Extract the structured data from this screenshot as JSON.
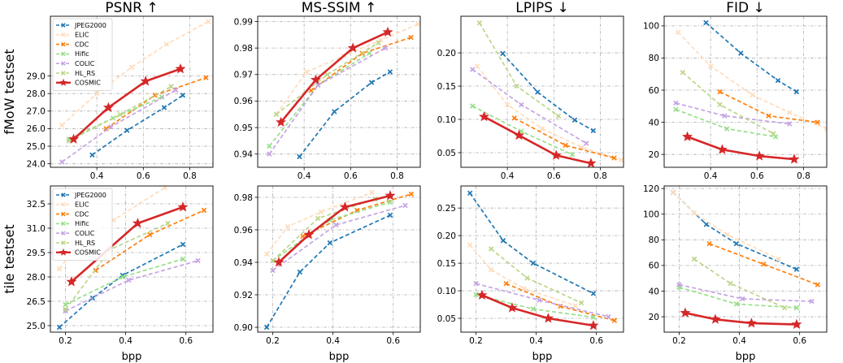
{
  "chart_data": {
    "type": "line",
    "columns": [
      "PSNR ↑",
      "MS-SSIM ↑",
      "LPIPS ↓",
      "FID ↓"
    ],
    "rows": [
      "fMoW testset",
      "tile testset"
    ],
    "xlabel": "bpp",
    "series_styles": [
      {
        "name": "JPEG2000",
        "color": "#1f77b4",
        "dash": "dashed",
        "marker": "x"
      },
      {
        "name": "ELIC",
        "color": "#ffdcbc",
        "dash": "dashed",
        "marker": "x"
      },
      {
        "name": "CDC",
        "color": "#ff7f0e",
        "dash": "dashed",
        "marker": "x"
      },
      {
        "name": "Hific",
        "color": "#98df8a",
        "dash": "dashed",
        "marker": "x"
      },
      {
        "name": "COLIC",
        "color": "#c5a3e3",
        "dash": "dashed",
        "marker": "x"
      },
      {
        "name": "HL_RS",
        "color": "#bcd68a",
        "dash": "dashed",
        "marker": "x"
      },
      {
        "name": "COSMIC",
        "color": "#d62728",
        "dash": "solid",
        "marker": "star"
      }
    ],
    "panels": [
      {
        "row": 0,
        "col": 0,
        "legend": "top-left",
        "xlim": [
          0.2,
          0.9
        ],
        "xticks": [
          0.4,
          0.6,
          0.8
        ],
        "ylim": [
          23.8,
          32.4
        ],
        "yticks": [
          24.0,
          25.0,
          26.0,
          27.0,
          28.0,
          29.0
        ],
        "ytick_fmt": 1,
        "series": [
          {
            "name": "JPEG2000",
            "x": [
              0.38,
              0.53,
              0.69,
              0.77
            ],
            "y": [
              24.5,
              25.9,
              27.2,
              27.9
            ]
          },
          {
            "name": "ELIC",
            "x": [
              0.25,
              0.4,
              0.55,
              0.7,
              0.88
            ],
            "y": [
              26.2,
              28.0,
              29.5,
              30.8,
              32.1
            ]
          },
          {
            "name": "CDC",
            "x": [
              0.44,
              0.65,
              0.87
            ],
            "y": [
              26.0,
              27.9,
              28.9
            ]
          },
          {
            "name": "Hific",
            "x": [
              0.28,
              0.47,
              0.68
            ],
            "y": [
              25.4,
              26.6,
              27.8
            ]
          },
          {
            "name": "COLIC",
            "x": [
              0.25,
              0.46,
              0.74
            ],
            "y": [
              24.1,
              26.1,
              28.2
            ]
          },
          {
            "name": "HL_RS",
            "x": [
              0.28,
              0.5,
              0.72
            ],
            "y": [
              25.3,
              26.8,
              28.4
            ]
          },
          {
            "name": "COSMIC",
            "x": [
              0.3,
              0.45,
              0.61,
              0.76
            ],
            "y": [
              25.4,
              27.2,
              28.7,
              29.4
            ]
          }
        ]
      },
      {
        "row": 0,
        "col": 1,
        "legend": "",
        "xlim": [
          0.2,
          0.9
        ],
        "xticks": [
          0.4,
          0.6,
          0.8
        ],
        "ylim": [
          0.935,
          0.992
        ],
        "yticks": [
          0.94,
          0.95,
          0.96,
          0.97,
          0.98,
          0.99
        ],
        "ytick_fmt": 2,
        "series": [
          {
            "name": "JPEG2000",
            "x": [
              0.38,
              0.53,
              0.69,
              0.77
            ],
            "y": [
              0.939,
              0.956,
              0.967,
              0.971
            ]
          },
          {
            "name": "ELIC",
            "x": [
              0.28,
              0.41,
              0.57,
              0.73,
              0.89
            ],
            "y": [
              0.955,
              0.971,
              0.977,
              0.983,
              0.989
            ]
          },
          {
            "name": "CDC",
            "x": [
              0.43,
              0.65,
              0.86
            ],
            "y": [
              0.964,
              0.978,
              0.984
            ]
          },
          {
            "name": "Hific",
            "x": [
              0.25,
              0.46,
              0.68
            ],
            "y": [
              0.943,
              0.966,
              0.978
            ]
          },
          {
            "name": "COLIC",
            "x": [
              0.25,
              0.46,
              0.75
            ],
            "y": [
              0.94,
              0.966,
              0.98
            ]
          },
          {
            "name": "HL_RS",
            "x": [
              0.28,
              0.5,
              0.72
            ],
            "y": [
              0.955,
              0.97,
              0.982
            ]
          },
          {
            "name": "COSMIC",
            "x": [
              0.3,
              0.45,
              0.61,
              0.76
            ],
            "y": [
              0.952,
              0.968,
              0.98,
              0.986
            ]
          }
        ]
      },
      {
        "row": 0,
        "col": 2,
        "legend": "",
        "xlim": [
          0.2,
          0.9
        ],
        "xticks": [
          0.4,
          0.6,
          0.8
        ],
        "ylim": [
          0.028,
          0.255
        ],
        "yticks": [
          0.05,
          0.1,
          0.15,
          0.2
        ],
        "ytick_fmt": 2,
        "series": [
          {
            "name": "JPEG2000",
            "x": [
              0.38,
              0.53,
              0.69,
              0.77
            ],
            "y": [
              0.199,
              0.141,
              0.099,
              0.083
            ]
          },
          {
            "name": "ELIC",
            "x": [
              0.27,
              0.4,
              0.55,
              0.72,
              0.89
            ],
            "y": [
              0.18,
              0.122,
              0.086,
              0.058,
              0.039
            ]
          },
          {
            "name": "CDC",
            "x": [
              0.43,
              0.65,
              0.86
            ],
            "y": [
              0.102,
              0.061,
              0.042
            ]
          },
          {
            "name": "Hific",
            "x": [
              0.25,
              0.46,
              0.68
            ],
            "y": [
              0.12,
              0.082,
              0.047
            ]
          },
          {
            "name": "COLIC",
            "x": [
              0.25,
              0.46,
              0.74
            ],
            "y": [
              0.175,
              0.122,
              0.064
            ]
          },
          {
            "name": "HL_RS",
            "x": [
              0.28,
              0.44,
              0.62
            ],
            "y": [
              0.245,
              0.15,
              0.105
            ]
          },
          {
            "name": "COSMIC",
            "x": [
              0.3,
              0.45,
              0.61,
              0.76
            ],
            "y": [
              0.104,
              0.076,
              0.046,
              0.034
            ]
          }
        ]
      },
      {
        "row": 0,
        "col": 3,
        "legend": "",
        "xlim": [
          0.2,
          0.9
        ],
        "xticks": [
          0.4,
          0.6,
          0.8
        ],
        "ylim": [
          12,
          106
        ],
        "yticks": [
          20,
          40,
          60,
          80,
          100
        ],
        "ytick_fmt": 0,
        "series": [
          {
            "name": "JPEG2000",
            "x": [
              0.38,
              0.53,
              0.69,
              0.77
            ],
            "y": [
              102,
              83,
              66,
              59
            ]
          },
          {
            "name": "ELIC",
            "x": [
              0.26,
              0.4,
              0.58,
              0.74,
              0.9
            ],
            "y": [
              96,
              75,
              57,
              46,
              36
            ]
          },
          {
            "name": "CDC",
            "x": [
              0.44,
              0.65,
              0.86
            ],
            "y": [
              59,
              44,
              40
            ]
          },
          {
            "name": "Hific",
            "x": [
              0.25,
              0.47,
              0.68
            ],
            "y": [
              48,
              36,
              31
            ]
          },
          {
            "name": "COLIC",
            "x": [
              0.25,
              0.46,
              0.74
            ],
            "y": [
              52,
              44,
              39
            ]
          },
          {
            "name": "HL_RS",
            "x": [
              0.28,
              0.44,
              0.67
            ],
            "y": [
              71,
              51,
              33
            ]
          },
          {
            "name": "COSMIC",
            "x": [
              0.3,
              0.45,
              0.61,
              0.76
            ],
            "y": [
              31,
              23,
              19,
              17
            ]
          }
        ]
      },
      {
        "row": 1,
        "col": 0,
        "legend": "top-left",
        "xlim": [
          0.15,
          0.69
        ],
        "xticks": [
          0.2,
          0.4,
          0.6
        ],
        "ylim": [
          24.6,
          33.6
        ],
        "yticks": [
          25.0,
          26.5,
          28.0,
          29.5,
          31.0,
          32.5
        ],
        "ytick_fmt": 1,
        "series": [
          {
            "name": "JPEG2000",
            "x": [
              0.18,
              0.29,
              0.39,
              0.59
            ],
            "y": [
              24.9,
              26.7,
              28.1,
              30.0
            ]
          },
          {
            "name": "ELIC",
            "x": [
              0.18,
              0.25,
              0.36,
              0.53
            ],
            "y": [
              28.5,
              30.2,
              31.5,
              33.5
            ]
          },
          {
            "name": "CDC",
            "x": [
              0.3,
              0.48,
              0.66
            ],
            "y": [
              28.4,
              30.6,
              32.1
            ]
          },
          {
            "name": "Hific",
            "x": [
              0.2,
              0.39,
              0.59
            ],
            "y": [
              26.3,
              28.0,
              29.1
            ]
          },
          {
            "name": "COLIC",
            "x": [
              0.2,
              0.41,
              0.64
            ],
            "y": [
              25.9,
              27.8,
              29.0
            ]
          },
          {
            "name": "HL_RS",
            "x": [
              0.2,
              0.35,
              0.54
            ],
            "y": [
              26.0,
              29.7,
              31.3
            ]
          },
          {
            "name": "COSMIC",
            "x": [
              0.22,
              0.44,
              0.59
            ],
            "y": [
              27.7,
              31.3,
              32.3
            ]
          }
        ]
      },
      {
        "row": 1,
        "col": 1,
        "legend": "",
        "xlim": [
          0.15,
          0.69
        ],
        "xticks": [
          0.2,
          0.4,
          0.6
        ],
        "ylim": [
          0.897,
          0.987
        ],
        "yticks": [
          0.9,
          0.92,
          0.94,
          0.96,
          0.98
        ],
        "ytick_fmt": 2,
        "series": [
          {
            "name": "JPEG2000",
            "x": [
              0.18,
              0.29,
              0.39,
              0.59
            ],
            "y": [
              0.9,
              0.934,
              0.952,
              0.969
            ]
          },
          {
            "name": "ELIC",
            "x": [
              0.18,
              0.25,
              0.36,
              0.53
            ],
            "y": [
              0.945,
              0.962,
              0.971,
              0.983
            ]
          },
          {
            "name": "CDC",
            "x": [
              0.3,
              0.48,
              0.66
            ],
            "y": [
              0.956,
              0.972,
              0.982
            ]
          },
          {
            "name": "Hific",
            "x": [
              0.2,
              0.39,
              0.59
            ],
            "y": [
              0.941,
              0.966,
              0.977
            ]
          },
          {
            "name": "COLIC",
            "x": [
              0.2,
              0.41,
              0.64
            ],
            "y": [
              0.935,
              0.963,
              0.975
            ]
          },
          {
            "name": "HL_RS",
            "x": [
              0.2,
              0.35,
              0.54
            ],
            "y": [
              0.941,
              0.967,
              0.979
            ]
          },
          {
            "name": "COSMIC",
            "x": [
              0.22,
              0.32,
              0.44,
              0.59
            ],
            "y": [
              0.94,
              0.957,
              0.974,
              0.981
            ]
          }
        ]
      },
      {
        "row": 1,
        "col": 2,
        "legend": "",
        "xlim": [
          0.15,
          0.69
        ],
        "xticks": [
          0.2,
          0.4,
          0.6
        ],
        "ylim": [
          0.025,
          0.29
        ],
        "yticks": [
          0.05,
          0.1,
          0.15,
          0.2,
          0.25
        ],
        "ytick_fmt": 2,
        "series": [
          {
            "name": "JPEG2000",
            "x": [
              0.18,
              0.29,
              0.39,
              0.59
            ],
            "y": [
              0.277,
              0.191,
              0.15,
              0.095
            ]
          },
          {
            "name": "ELIC",
            "x": [
              0.18,
              0.25,
              0.36,
              0.53
            ],
            "y": [
              0.183,
              0.138,
              0.104,
              0.073
            ]
          },
          {
            "name": "CDC",
            "x": [
              0.3,
              0.48,
              0.66
            ],
            "y": [
              0.113,
              0.072,
              0.046
            ]
          },
          {
            "name": "Hific",
            "x": [
              0.2,
              0.39,
              0.59
            ],
            "y": [
              0.093,
              0.067,
              0.052
            ]
          },
          {
            "name": "COLIC",
            "x": [
              0.2,
              0.41,
              0.64
            ],
            "y": [
              0.113,
              0.083,
              0.053
            ]
          },
          {
            "name": "HL_RS",
            "x": [
              0.25,
              0.37,
              0.55
            ],
            "y": [
              0.176,
              0.123,
              0.078
            ]
          },
          {
            "name": "COSMIC",
            "x": [
              0.22,
              0.32,
              0.44,
              0.59
            ],
            "y": [
              0.092,
              0.069,
              0.05,
              0.037
            ]
          }
        ]
      },
      {
        "row": 1,
        "col": 3,
        "legend": "",
        "xlim": [
          0.15,
          0.69
        ],
        "xticks": [
          0.2,
          0.4,
          0.6
        ],
        "ylim": [
          8,
          122
        ],
        "yticks": [
          20,
          40,
          60,
          80,
          100,
          120
        ],
        "ytick_fmt": 0,
        "series": [
          {
            "name": "JPEG2000",
            "x": [
              0.18,
              0.29,
              0.39,
              0.59
            ],
            "y": [
              117,
              92,
              77,
              57
            ]
          },
          {
            "name": "ELIC",
            "x": [
              0.18,
              0.25,
              0.36,
              0.53
            ],
            "y": [
              117,
              101,
              84,
              65
            ]
          },
          {
            "name": "CDC",
            "x": [
              0.3,
              0.48,
              0.66
            ],
            "y": [
              77,
              61,
              45
            ]
          },
          {
            "name": "Hific",
            "x": [
              0.2,
              0.39,
              0.59
            ],
            "y": [
              43,
              30,
              27
            ]
          },
          {
            "name": "COLIC",
            "x": [
              0.2,
              0.41,
              0.64
            ],
            "y": [
              45,
              34,
              32
            ]
          },
          {
            "name": "HL_RS",
            "x": [
              0.25,
              0.37,
              0.55
            ],
            "y": [
              65,
              46,
              27
            ]
          },
          {
            "name": "COSMIC",
            "x": [
              0.22,
              0.32,
              0.44,
              0.59
            ],
            "y": [
              23,
              18,
              15,
              14
            ]
          }
        ]
      }
    ]
  }
}
